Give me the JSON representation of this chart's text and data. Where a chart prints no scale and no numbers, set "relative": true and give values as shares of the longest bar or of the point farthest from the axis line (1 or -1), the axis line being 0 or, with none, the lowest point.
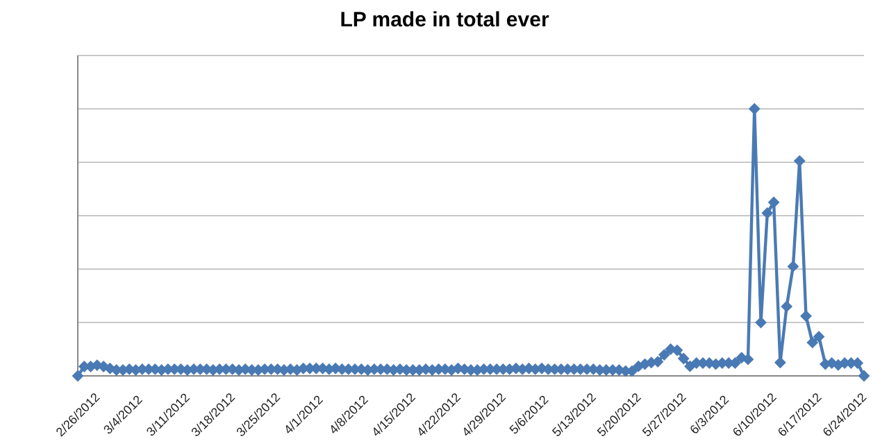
{
  "chart_data": {
    "type": "line",
    "title": "LP made in total ever",
    "relative": true,
    "grid": "y",
    "marker": "diamond",
    "line_style": "solid",
    "categories": [
      "2/26/2012",
      null,
      null,
      null,
      null,
      null,
      null,
      "3/4/2012",
      null,
      null,
      null,
      null,
      null,
      null,
      "3/11/2012",
      null,
      null,
      null,
      null,
      null,
      null,
      "3/18/2012",
      null,
      null,
      null,
      null,
      null,
      null,
      "3/25/2012",
      null,
      null,
      null,
      null,
      null,
      null,
      "4/1/2012",
      null,
      null,
      null,
      null,
      null,
      null,
      "4/8/2012",
      null,
      null,
      null,
      null,
      null,
      null,
      "4/15/2012",
      null,
      null,
      null,
      null,
      null,
      null,
      "4/22/2012",
      null,
      null,
      null,
      null,
      null,
      null,
      "4/29/2012",
      null,
      null,
      null,
      null,
      null,
      null,
      "5/6/2012",
      null,
      null,
      null,
      null,
      null,
      null,
      "5/13/2012",
      null,
      null,
      null,
      null,
      null,
      null,
      "5/20/2012",
      null,
      null,
      null,
      null,
      null,
      null,
      "5/27/2012",
      null,
      null,
      null,
      null,
      null,
      null,
      "6/3/2012",
      null,
      null,
      null,
      null,
      null,
      null,
      "6/10/2012",
      null,
      null,
      null,
      null,
      null,
      null,
      "6/17/2012",
      null,
      null,
      null,
      null,
      null,
      null,
      "6/24/2012",
      null,
      null,
      null
    ],
    "series": [
      {
        "color": "#4a7ab4",
        "values": [
          0,
          0.035,
          0.035,
          0.04,
          0.035,
          0.028,
          0.022,
          0.022,
          0.025,
          0.022,
          0.025,
          0.025,
          0.025,
          0.022,
          0.025,
          0.025,
          0.025,
          0.022,
          0.025,
          0.025,
          0.025,
          0.022,
          0.025,
          0.025,
          0.025,
          0.022,
          0.025,
          0.022,
          0.022,
          0.025,
          0.025,
          0.025,
          0.022,
          0.025,
          0.022,
          0.028,
          0.028,
          0.028,
          0.028,
          0.025,
          0.028,
          0.025,
          0.025,
          0.025,
          0.025,
          0.022,
          0.025,
          0.025,
          0.025,
          0.022,
          0.025,
          0.022,
          0.022,
          0.022,
          0.025,
          0.022,
          0.025,
          0.025,
          0.022,
          0.028,
          0.025,
          0.022,
          0.022,
          0.025,
          0.025,
          0.025,
          0.025,
          0.025,
          0.028,
          0.025,
          0.028,
          0.025,
          0.028,
          0.025,
          0.025,
          0.025,
          0.025,
          0.025,
          0.025,
          0.025,
          0.025,
          0.022,
          0.022,
          0.022,
          0.022,
          0.018,
          0.018,
          0.036,
          0.044,
          0.05,
          0.053,
          0.079,
          0.1,
          0.096,
          0.065,
          0.036,
          0.048,
          0.048,
          0.048,
          0.044,
          0.048,
          0.048,
          0.048,
          0.068,
          0.062,
          1.0,
          0.2,
          0.61,
          0.65,
          0.05,
          0.26,
          0.41,
          0.805,
          0.224,
          0.125,
          0.147,
          0.044,
          0.048,
          0.041,
          0.048,
          0.048,
          0.048,
          0
        ]
      }
    ]
  }
}
